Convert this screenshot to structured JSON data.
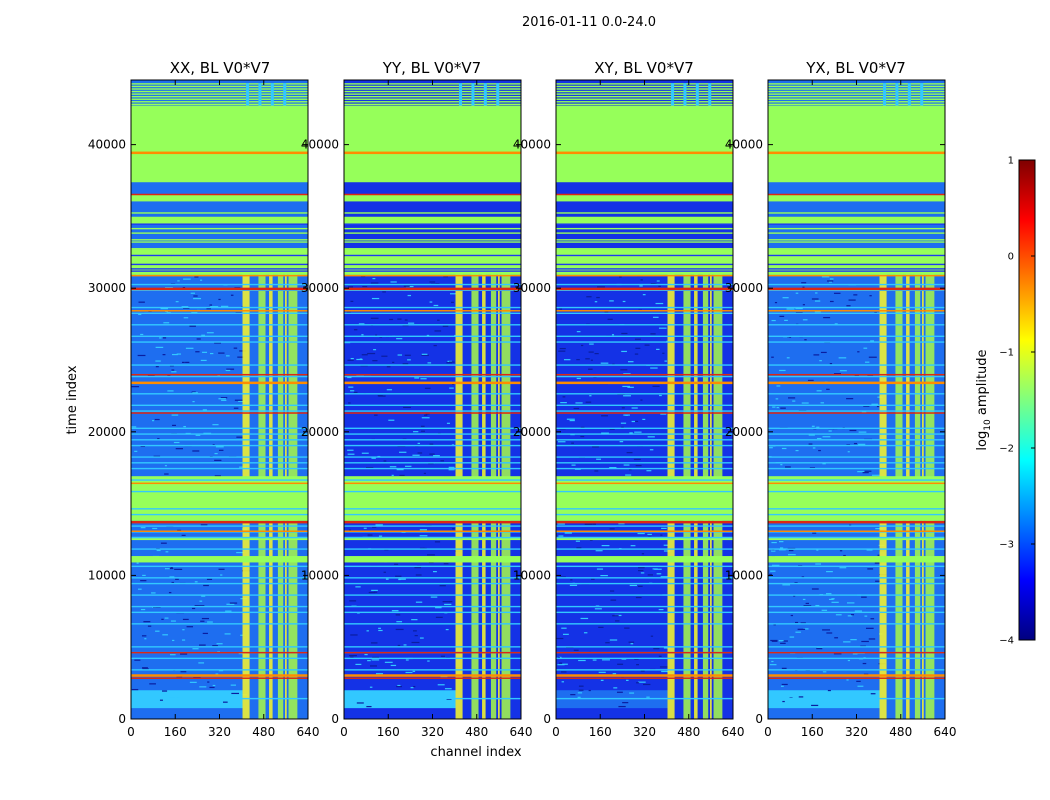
{
  "suptitle": "2016-01-11 0.0-24.0",
  "chart_data": [
    {
      "type": "heatmap",
      "title": "XX, BL V0*V7",
      "xlabel": "",
      "ylabel": "time index",
      "xlim": [
        0,
        640
      ],
      "ylim": [
        0,
        44500
      ],
      "xticks": [
        0,
        160,
        320,
        480,
        640
      ],
      "yticks": [
        0,
        10000,
        20000,
        30000,
        40000
      ],
      "colorscale": "log10 amplitude"
    },
    {
      "type": "heatmap",
      "title": "YY, BL V0*V7",
      "xlabel": "channel index",
      "ylabel": "",
      "xlim": [
        0,
        640
      ],
      "ylim": [
        0,
        44500
      ],
      "xticks": [
        0,
        160,
        320,
        480,
        640
      ],
      "yticks": [
        0,
        10000,
        20000,
        30000,
        40000
      ],
      "colorscale": "log10 amplitude"
    },
    {
      "type": "heatmap",
      "title": "XY, BL V0*V7",
      "xlabel": "",
      "ylabel": "",
      "xlim": [
        0,
        640
      ],
      "ylim": [
        0,
        44500
      ],
      "xticks": [
        0,
        160,
        320,
        480,
        640
      ],
      "yticks": [
        0,
        10000,
        20000,
        30000,
        40000
      ],
      "colorscale": "log10 amplitude"
    },
    {
      "type": "heatmap",
      "title": "YX, BL V0*V7",
      "xlabel": "",
      "ylabel": "",
      "xlim": [
        0,
        640
      ],
      "ylim": [
        0,
        44500
      ],
      "xticks": [
        0,
        160,
        320,
        480,
        640
      ],
      "yticks": [
        0,
        10000,
        20000,
        30000,
        40000
      ],
      "colorscale": "log10 amplitude"
    }
  ],
  "colorbar": {
    "label": "log10 amplitude",
    "label_prefix": "log",
    "label_sub": "10",
    "label_suffix": " amplitude",
    "min": -4,
    "max": 1,
    "ticks": [
      1,
      0,
      -1,
      -2,
      -3,
      -4
    ],
    "tick_labels": [
      "1",
      "0",
      "−1",
      "−2",
      "−3",
      "−4"
    ],
    "colors": [
      "#00007f",
      "#0000ff",
      "#007fff",
      "#00ffff",
      "#7fff7f",
      "#ffff00",
      "#ff7f00",
      "#ff0000",
      "#7f0000"
    ]
  },
  "colors": {
    "flag_green": "#96ff5a",
    "noise_blue": "#1e3cf0",
    "band_cyan": "#32c8ff",
    "rfi_yellow": "#f0f032",
    "rfi_orange": "#ff8c00",
    "rfi_red": "#dc2814"
  }
}
